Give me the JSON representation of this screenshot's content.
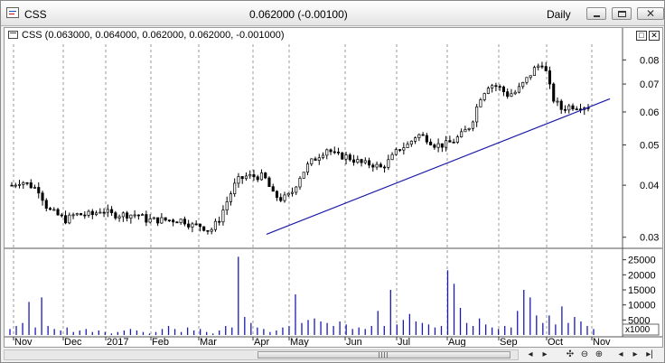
{
  "window": {
    "title": "CSS",
    "quote": "0.062000 (-0.00100)",
    "period": "Daily",
    "icons": {
      "app": "chart-icon",
      "minimize": "minimize-icon",
      "maximize": "maximize-icon",
      "close": "close-icon"
    },
    "close_glyph": "✕"
  },
  "chart": {
    "legend": "CSS (0.063000, 0.064000, 0.062000, 0.062000, -0.001000)",
    "pane_buttons": [
      "□",
      "✕"
    ],
    "price_axis_labels": [
      "0.08",
      "0.07",
      "0.06",
      "0.05",
      "0.04",
      "0.03"
    ],
    "volume_axis_labels": [
      "25000",
      "20000",
      "15000",
      "10000",
      "5000"
    ],
    "volume_unit": "x1000",
    "date_labels": [
      "Nov",
      "Dec",
      "2017",
      "Feb",
      "Mar",
      "Apr",
      "May",
      "Jun",
      "Jul",
      "Aug",
      "Sep",
      "Oct",
      "Nov"
    ],
    "colors": {
      "trendline": "#1a1aa8",
      "volume": "#1a1ab0",
      "candle": "#000000",
      "grid": "#9a9a9a"
    }
  },
  "chart_data": {
    "type": "candlestick",
    "series": [
      {
        "name": "CSS",
        "kind": "price",
        "scale": "log",
        "ylim": [
          0.0285,
          0.089
        ],
        "ticks": [
          0.08,
          0.07,
          0.06,
          0.05,
          0.04,
          0.03
        ],
        "months": [
          "Nov",
          "Dec",
          "2017",
          "Feb",
          "Mar",
          "Apr",
          "May",
          "Jun",
          "Jul",
          "Aug",
          "Sep",
          "Oct",
          "Nov"
        ],
        "close_path": [
          [
            0,
            0.04
          ],
          [
            1,
            0.041
          ],
          [
            2,
            0.04
          ],
          [
            3,
            0.039
          ],
          [
            4,
            0.035
          ],
          [
            5,
            0.034
          ],
          [
            6,
            0.033
          ],
          [
            7,
            0.034
          ],
          [
            8,
            0.034
          ],
          [
            9,
            0.034
          ],
          [
            10,
            0.035
          ],
          [
            11,
            0.034
          ],
          [
            12,
            0.034
          ],
          [
            13,
            0.034
          ],
          [
            14,
            0.034
          ],
          [
            15,
            0.033
          ],
          [
            16,
            0.033
          ],
          [
            17,
            0.033
          ],
          [
            18,
            0.033
          ],
          [
            19,
            0.033
          ],
          [
            20,
            0.032
          ],
          [
            21,
            0.032
          ],
          [
            22,
            0.031
          ],
          [
            23,
            0.033
          ],
          [
            24,
            0.037
          ],
          [
            25,
            0.041
          ],
          [
            26,
            0.042
          ],
          [
            27,
            0.042
          ],
          [
            28,
            0.042
          ],
          [
            29,
            0.038
          ],
          [
            30,
            0.037
          ],
          [
            31,
            0.038
          ],
          [
            32,
            0.042
          ],
          [
            33,
            0.045
          ],
          [
            34,
            0.047
          ],
          [
            35,
            0.049
          ],
          [
            36,
            0.047
          ],
          [
            37,
            0.047
          ],
          [
            38,
            0.046
          ],
          [
            39,
            0.045
          ],
          [
            40,
            0.045
          ],
          [
            41,
            0.044
          ],
          [
            42,
            0.046
          ],
          [
            43,
            0.049
          ],
          [
            44,
            0.05
          ],
          [
            45,
            0.053
          ],
          [
            46,
            0.052
          ],
          [
            47,
            0.05
          ],
          [
            48,
            0.05
          ],
          [
            49,
            0.051
          ],
          [
            50,
            0.053
          ],
          [
            51,
            0.056
          ],
          [
            52,
            0.065
          ],
          [
            53,
            0.07
          ],
          [
            54,
            0.069
          ],
          [
            55,
            0.066
          ],
          [
            56,
            0.067
          ],
          [
            57,
            0.071
          ],
          [
            58,
            0.076
          ],
          [
            59,
            0.079
          ],
          [
            60,
            0.065
          ],
          [
            61,
            0.061
          ],
          [
            62,
            0.062
          ],
          [
            63,
            0.062
          ],
          [
            64,
            0.062
          ]
        ]
      },
      {
        "name": "Trendline",
        "kind": "line",
        "from": [
          "Apr",
          0.0305
        ],
        "to": [
          "Nov",
          0.0645
        ]
      },
      {
        "name": "Volume",
        "kind": "bar",
        "unit": "x1000",
        "ylim": [
          0,
          27000
        ],
        "values": [
          2000,
          3000,
          4000,
          11000,
          2500,
          12500,
          3000,
          2000,
          1500,
          2500,
          1000,
          1500,
          2000,
          1000,
          1500,
          1000,
          500,
          1000,
          1500,
          2000,
          1500,
          1000,
          500,
          1000,
          2000,
          3000,
          2000,
          1000,
          2500,
          1500,
          2000,
          1000,
          500,
          1500,
          3000,
          2500,
          26000,
          6000,
          4000,
          2500,
          2000,
          1000,
          1500,
          2500,
          3000,
          13500,
          4000,
          5000,
          5500,
          4500,
          4000,
          3000,
          4500,
          3500,
          2000,
          2500,
          2000,
          3000,
          8000,
          3000,
          15000,
          3500,
          5000,
          7000,
          4500,
          4000,
          3500,
          2500,
          3000,
          21500,
          17000,
          9000,
          4000,
          3000,
          5500,
          3500,
          2500,
          2000,
          3000,
          2500,
          8000,
          15000,
          12500,
          6500,
          4000,
          6500,
          3500,
          9500,
          4000,
          6000,
          4500,
          3000,
          2000
        ]
      }
    ]
  },
  "scrollbar": {
    "position": 0.5
  },
  "toolbar": {
    "icons": [
      "scroll-left-icon",
      "scroll-right-icon",
      "pan-icon",
      "zoom-out-icon",
      "zoom-in-icon",
      "scroll-prev-icon",
      "scroll-next-icon",
      "scroll-end-icon"
    ],
    "glyphs": [
      "◂",
      "▸",
      "✣",
      "⊖",
      "⊕",
      "◂",
      "▸",
      "▸|"
    ]
  }
}
